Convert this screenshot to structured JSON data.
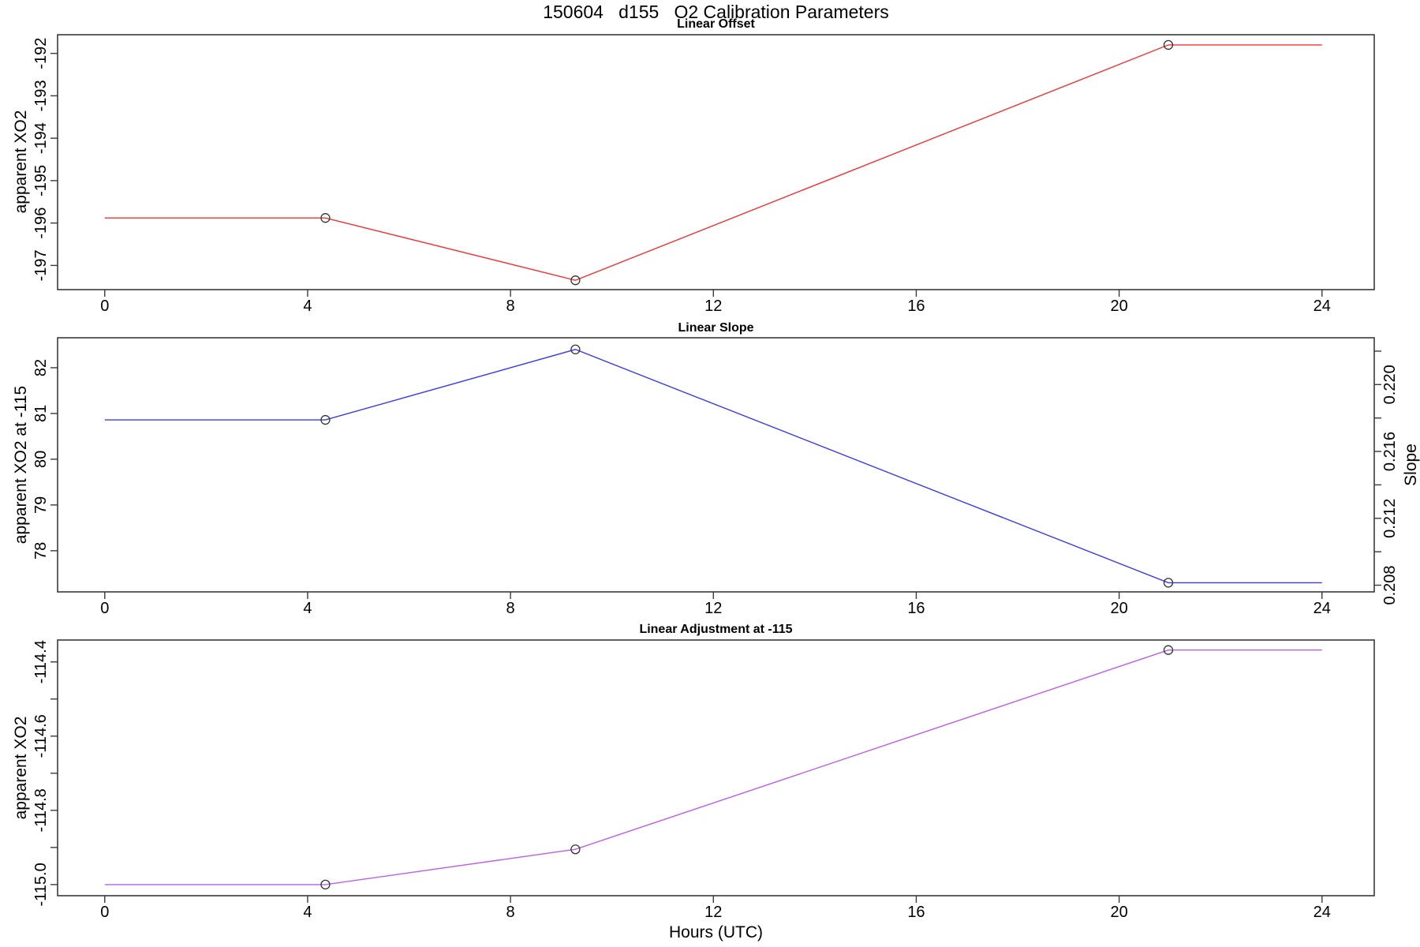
{
  "title": "150604   d155   O2 Calibration Parameters",
  "xlabel": "Hours (UTC)",
  "axis_color": "#3a3a3a",
  "marker_color": "#333333",
  "background": "#ffffff",
  "chart_data": [
    {
      "type": "line",
      "title": "Linear Offset",
      "ylabel": "apparent XO2",
      "color": "#f43131",
      "x_events": [
        4.35,
        9.28,
        20.97
      ],
      "y_events": [
        -195.88,
        -197.35,
        -191.8
      ],
      "line_x": [
        0,
        4.35,
        9.28,
        20.97,
        24
      ],
      "line_y": [
        -195.88,
        -195.88,
        -197.35,
        -191.8,
        -191.8
      ],
      "xlim": [
        -0.93,
        25.03
      ],
      "ylim": [
        -197.57,
        -191.56
      ],
      "xticks": [
        {
          "v": 0,
          "label": "0"
        },
        {
          "v": 4,
          "label": "4"
        },
        {
          "v": 8,
          "label": "8"
        },
        {
          "v": 12,
          "label": "12"
        },
        {
          "v": 16,
          "label": "16"
        },
        {
          "v": 20,
          "label": "20"
        },
        {
          "v": 24,
          "label": "24"
        }
      ],
      "yticks": [
        {
          "v": -197,
          "label": "-197"
        },
        {
          "v": -196,
          "label": "-196"
        },
        {
          "v": -195,
          "label": "-195"
        },
        {
          "v": -194,
          "label": "-194"
        },
        {
          "v": -193,
          "label": "-193"
        },
        {
          "v": -192,
          "label": "-192"
        }
      ]
    },
    {
      "type": "line",
      "title": "Linear Slope",
      "ylabel": "apparent XO2 at -115",
      "ylabel_right": "Slope",
      "color": "#3a3af0",
      "x_events": [
        4.35,
        9.28,
        20.97
      ],
      "y_events": [
        80.86,
        82.4,
        77.3
      ],
      "y_events_right_scale": [
        0.2179,
        0.2221,
        0.2081
      ],
      "line_x": [
        0,
        4.35,
        9.28,
        20.97,
        24
      ],
      "line_y": [
        80.86,
        80.86,
        82.4,
        77.3,
        77.3
      ],
      "xlim": [
        -0.93,
        25.03
      ],
      "ylim": [
        77.1,
        82.655
      ],
      "ylim_right": [
        0.2076,
        0.2228
      ],
      "xticks": [
        {
          "v": 0,
          "label": "0"
        },
        {
          "v": 4,
          "label": "4"
        },
        {
          "v": 8,
          "label": "8"
        },
        {
          "v": 12,
          "label": "12"
        },
        {
          "v": 16,
          "label": "16"
        },
        {
          "v": 20,
          "label": "20"
        },
        {
          "v": 24,
          "label": "24"
        }
      ],
      "yticks": [
        {
          "v": 78,
          "label": "78"
        },
        {
          "v": 79,
          "label": "79"
        },
        {
          "v": 80,
          "label": "80"
        },
        {
          "v": 81,
          "label": "81"
        },
        {
          "v": 82,
          "label": "82"
        }
      ],
      "yticks_right": [
        {
          "v": 0.208,
          "label": "0.208"
        },
        {
          "v": 0.21,
          "label": ""
        },
        {
          "v": 0.212,
          "label": "0.212"
        },
        {
          "v": 0.214,
          "label": ""
        },
        {
          "v": 0.216,
          "label": "0.216"
        },
        {
          "v": 0.218,
          "label": ""
        },
        {
          "v": 0.22,
          "label": "0.220"
        },
        {
          "v": 0.222,
          "label": ""
        }
      ]
    },
    {
      "type": "line",
      "title": "Linear Adjustment at -115",
      "ylabel": "apparent XO2",
      "color": "#bb5df2",
      "x_events": [
        4.35,
        9.28,
        20.97
      ],
      "y_events": [
        -115.0,
        -114.905,
        -114.368
      ],
      "line_x": [
        0,
        4.35,
        9.28,
        20.97,
        24
      ],
      "line_y": [
        -115.0,
        -115.0,
        -114.905,
        -114.368,
        -114.368
      ],
      "xlim": [
        -0.93,
        25.03
      ],
      "ylim": [
        -115.03,
        -114.341
      ],
      "xticks": [
        {
          "v": 0,
          "label": "0"
        },
        {
          "v": 4,
          "label": "4"
        },
        {
          "v": 8,
          "label": "8"
        },
        {
          "v": 12,
          "label": "12"
        },
        {
          "v": 16,
          "label": "16"
        },
        {
          "v": 20,
          "label": "20"
        },
        {
          "v": 24,
          "label": "24"
        }
      ],
      "yticks": [
        {
          "v": -115.0,
          "label": "-115.0"
        },
        {
          "v": -114.9,
          "label": ""
        },
        {
          "v": -114.8,
          "label": "-114.8"
        },
        {
          "v": -114.7,
          "label": ""
        },
        {
          "v": -114.6,
          "label": "-114.6"
        },
        {
          "v": -114.5,
          "label": ""
        },
        {
          "v": -114.4,
          "label": "-114.4"
        }
      ]
    }
  ]
}
